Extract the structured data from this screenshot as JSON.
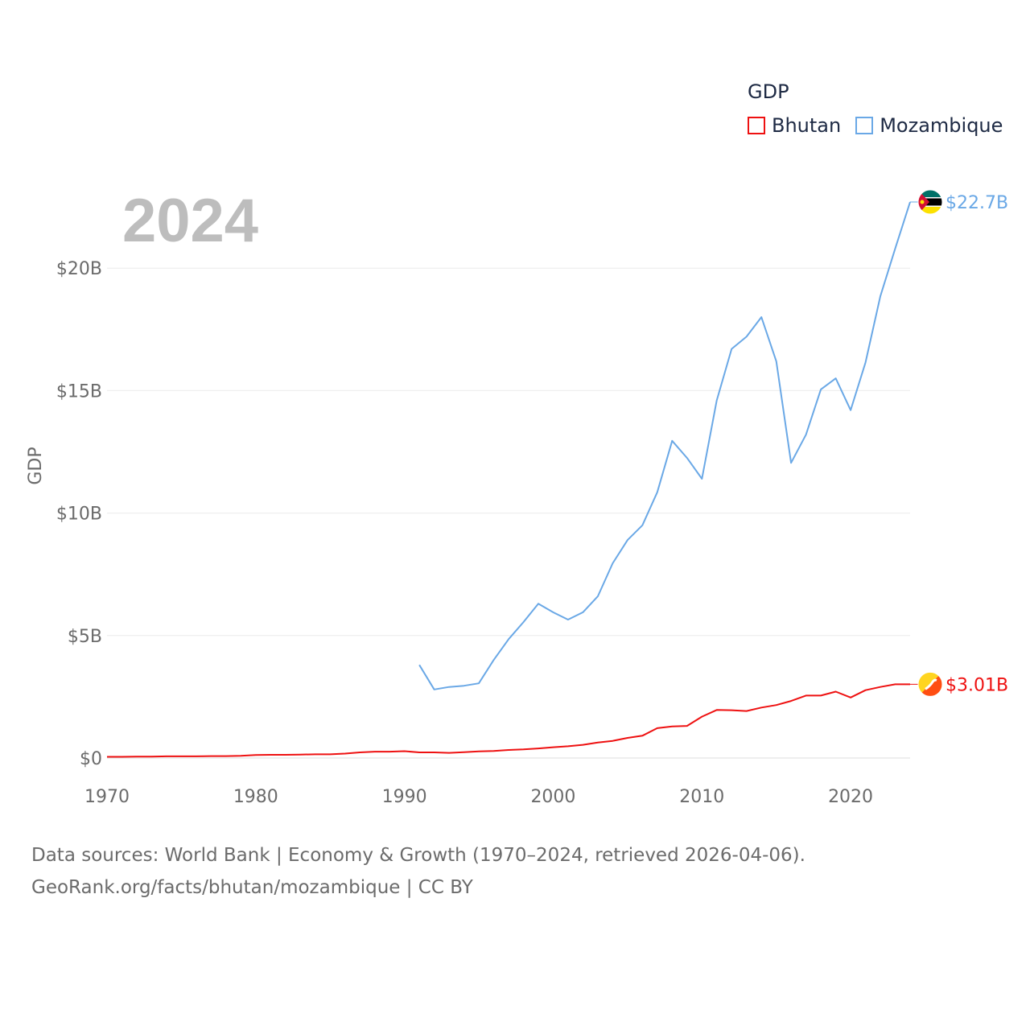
{
  "chart_data": {
    "type": "line",
    "year_label": "2024",
    "ylabel": "GDP",
    "xlim": [
      1970,
      2024
    ],
    "ylim": [
      0,
      22.7
    ],
    "x_ticks": [
      "1970",
      "1980",
      "1990",
      "2000",
      "2010",
      "2020"
    ],
    "y_ticks": [
      {
        "value": 0,
        "label": "$0"
      },
      {
        "value": 5,
        "label": "$5B"
      },
      {
        "value": 10,
        "label": "$10B"
      },
      {
        "value": 15,
        "label": "$15B"
      },
      {
        "value": 20,
        "label": "$20B"
      }
    ],
    "legend_title": "GDP",
    "series": [
      {
        "name": "Bhutan",
        "color": "#ee1111",
        "end_label": "$3.01B",
        "flag_icon": "bhutan-flag-icon",
        "x": [
          1970,
          1971,
          1972,
          1973,
          1974,
          1975,
          1976,
          1977,
          1978,
          1979,
          1980,
          1981,
          1982,
          1983,
          1984,
          1985,
          1986,
          1987,
          1988,
          1989,
          1990,
          1991,
          1992,
          1993,
          1994,
          1995,
          1996,
          1997,
          1998,
          1999,
          2000,
          2001,
          2002,
          2003,
          2004,
          2005,
          2006,
          2007,
          2008,
          2009,
          2010,
          2011,
          2012,
          2013,
          2014,
          2015,
          2016,
          2017,
          2018,
          2019,
          2020,
          2021,
          2022,
          2023,
          2024
        ],
        "values": [
          0.05,
          0.05,
          0.06,
          0.06,
          0.07,
          0.07,
          0.07,
          0.08,
          0.08,
          0.09,
          0.12,
          0.13,
          0.13,
          0.14,
          0.15,
          0.15,
          0.18,
          0.23,
          0.26,
          0.26,
          0.28,
          0.23,
          0.23,
          0.21,
          0.24,
          0.27,
          0.29,
          0.33,
          0.35,
          0.39,
          0.44,
          0.48,
          0.54,
          0.63,
          0.7,
          0.82,
          0.91,
          1.22,
          1.29,
          1.31,
          1.69,
          1.96,
          1.95,
          1.92,
          2.06,
          2.16,
          2.33,
          2.55,
          2.55,
          2.71,
          2.47,
          2.77,
          2.9,
          3.01,
          3.01
        ]
      },
      {
        "name": "Mozambique",
        "color": "#6aa8e6",
        "end_label": "$22.7B",
        "flag_icon": "mozambique-flag-icon",
        "x": [
          1991,
          1992,
          1993,
          1994,
          1995,
          1996,
          1997,
          1998,
          1999,
          2000,
          2001,
          2002,
          2003,
          2004,
          2005,
          2006,
          2007,
          2008,
          2009,
          2010,
          2011,
          2012,
          2013,
          2014,
          2015,
          2016,
          2017,
          2018,
          2019,
          2020,
          2021,
          2022,
          2023,
          2024
        ],
        "values": [
          3.8,
          2.8,
          2.9,
          2.95,
          3.05,
          4.0,
          4.85,
          5.55,
          6.3,
          5.95,
          5.65,
          5.95,
          6.6,
          7.95,
          8.9,
          9.5,
          10.85,
          12.95,
          12.25,
          11.4,
          14.6,
          16.7,
          17.2,
          18.0,
          16.2,
          12.05,
          13.2,
          15.05,
          15.5,
          14.2,
          16.15,
          18.85,
          20.8,
          22.7
        ]
      }
    ]
  },
  "source_line1": "Data sources: World Bank | Economy & Growth (1970–2024, retrieved 2026-04-06).",
  "source_line2": "GeoRank.org/facts/bhutan/mozambique | CC BY"
}
